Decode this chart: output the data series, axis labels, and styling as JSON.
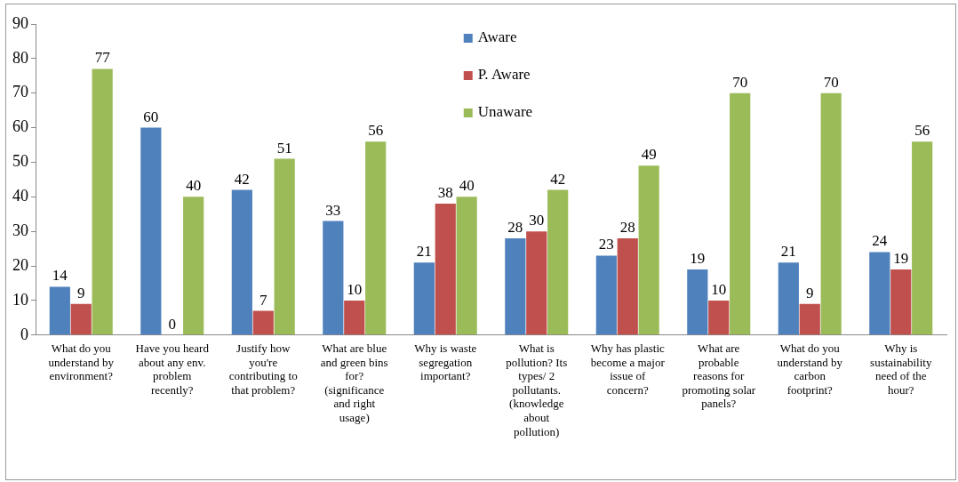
{
  "chart_data": {
    "type": "bar",
    "categories": [
      "What do you understand by environment?",
      "Have you heard about any env. problem recently?",
      "Justify how you're contributing to that problem?",
      "What are blue and green bins for? (significance and right usage)",
      "Why is waste segregation important?",
      "What is pollution? Its types/ 2 pollutants. (knowledge about pollution)",
      "Why has plastic become a major issue of concern?",
      "What are probable reasons for promoting solar panels?",
      "What do you understand by carbon footprint?",
      "Why is sustainability need of the hour?"
    ],
    "series": [
      {
        "name": "Aware",
        "color": "#4f81bd",
        "values": [
          14,
          60,
          42,
          33,
          21,
          28,
          23,
          19,
          21,
          24
        ]
      },
      {
        "name": "P. Aware",
        "color": "#c0504d",
        "values": [
          9,
          0,
          7,
          10,
          38,
          30,
          28,
          10,
          9,
          19
        ]
      },
      {
        "name": "Unaware",
        "color": "#9bbb59",
        "values": [
          77,
          40,
          51,
          56,
          40,
          42,
          49,
          70,
          70,
          56
        ]
      }
    ],
    "ylim": [
      0,
      90
    ],
    "yticks": [
      0,
      10,
      20,
      30,
      40,
      50,
      60,
      70,
      80,
      90
    ],
    "grid": false,
    "legend": "top",
    "data_labels": true
  }
}
